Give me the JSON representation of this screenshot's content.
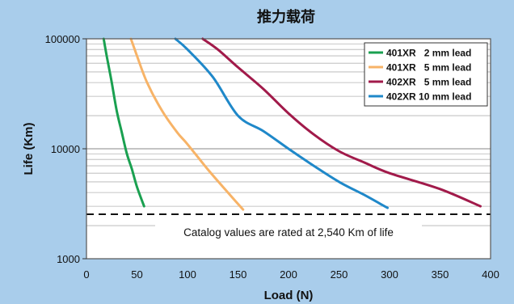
{
  "chart_data": {
    "type": "line",
    "title": "推力载荷",
    "xlabel": "Load (N)",
    "ylabel": "Life (Km)",
    "xlim": [
      0,
      400
    ],
    "ylim": [
      1000,
      100000
    ],
    "y_scale": "log",
    "x_ticks": [
      0,
      50,
      100,
      150,
      200,
      250,
      300,
      350,
      400
    ],
    "y_ticks": [
      {
        "value": 1000,
        "label": "1000"
      },
      {
        "value": 10000,
        "label": "10000"
      },
      {
        "value": 100000,
        "label": "100000"
      }
    ],
    "grid": "horizontal-minor",
    "legend_position": "top-right",
    "series": [
      {
        "name": "401XR   2 mm lead",
        "color": "#1aa050",
        "points": [
          [
            17,
            100000
          ],
          [
            20,
            70000
          ],
          [
            25,
            40000
          ],
          [
            30,
            22000
          ],
          [
            35,
            14000
          ],
          [
            40,
            9000
          ],
          [
            45,
            6500
          ],
          [
            50,
            4500
          ],
          [
            57,
            3000
          ]
        ]
      },
      {
        "name": "401XR   5 mm lead",
        "color": "#f7b367",
        "points": [
          [
            44,
            100000
          ],
          [
            50,
            70000
          ],
          [
            60,
            40000
          ],
          [
            75,
            22000
          ],
          [
            90,
            14000
          ],
          [
            100,
            11000
          ],
          [
            120,
            6500
          ],
          [
            140,
            4000
          ],
          [
            155,
            2800
          ]
        ]
      },
      {
        "name": "402XR   5 mm lead",
        "color": "#a11a4a",
        "points": [
          [
            115,
            100000
          ],
          [
            130,
            80000
          ],
          [
            150,
            55000
          ],
          [
            175,
            35000
          ],
          [
            200,
            21000
          ],
          [
            225,
            13500
          ],
          [
            250,
            9500
          ],
          [
            275,
            7500
          ],
          [
            300,
            6000
          ],
          [
            350,
            4300
          ],
          [
            390,
            3000
          ]
        ]
      },
      {
        "name": "402XR 10 mm lead",
        "color": "#1f88c9",
        "points": [
          [
            88,
            100000
          ],
          [
            100,
            80000
          ],
          [
            125,
            45000
          ],
          [
            150,
            20000
          ],
          [
            175,
            14500
          ],
          [
            200,
            10000
          ],
          [
            225,
            7000
          ],
          [
            250,
            5000
          ],
          [
            275,
            3800
          ],
          [
            298,
            2900
          ]
        ]
      }
    ],
    "reference_line": {
      "value": 2540,
      "style": "dashed"
    },
    "annotation": "Catalog values are rated at 2,540 Km of life"
  }
}
